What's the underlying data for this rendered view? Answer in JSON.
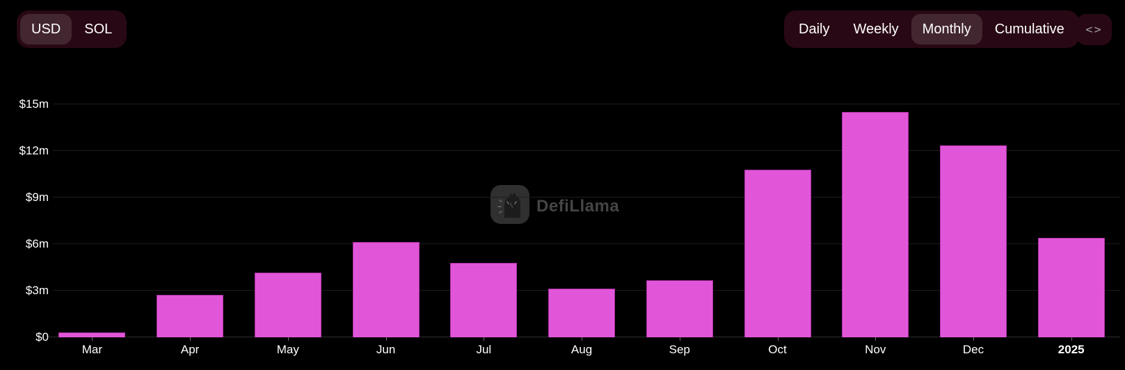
{
  "header": {
    "currency_toggle": {
      "options": [
        {
          "label": "USD",
          "selected": true
        },
        {
          "label": "SOL",
          "selected": false
        }
      ]
    },
    "interval_toggle": {
      "options": [
        {
          "label": "Daily",
          "selected": false
        },
        {
          "label": "Weekly",
          "selected": false
        },
        {
          "label": "Monthly",
          "selected": true
        },
        {
          "label": "Cumulative",
          "selected": false
        }
      ]
    },
    "code_button_icon": "<>"
  },
  "watermark": {
    "text": "DefiLlama"
  },
  "colors": {
    "background": "#000000",
    "bar": "#e156d9",
    "bar_border": "#ad32a4",
    "toggle_container": "#280814",
    "toggle_selected": "#422630",
    "gridline": "#1d1d1d",
    "axis_line": "#2f2f2f",
    "label_text": "#ffffff",
    "watermark_text": "#454545"
  },
  "chart_data": {
    "type": "bar",
    "title": "",
    "xlabel": "",
    "ylabel": "",
    "unit": "USD (millions)",
    "categories": [
      "Mar",
      "Apr",
      "May",
      "Jun",
      "Jul",
      "Aug",
      "Sep",
      "Oct",
      "Nov",
      "Dec",
      "2025"
    ],
    "values": [
      0.3,
      2.75,
      4.15,
      6.15,
      4.8,
      3.15,
      3.65,
      10.8,
      14.5,
      12.35,
      6.4
    ],
    "ylim": [
      0,
      15
    ],
    "ytick_values": [
      0,
      3,
      6,
      9,
      12,
      15
    ],
    "ytick_labels": [
      "$0",
      "$3m",
      "$6m",
      "$9m",
      "$12m",
      "$15m"
    ],
    "x_bold_labels": [
      "2025"
    ],
    "grid": true,
    "legend_position": "none"
  }
}
